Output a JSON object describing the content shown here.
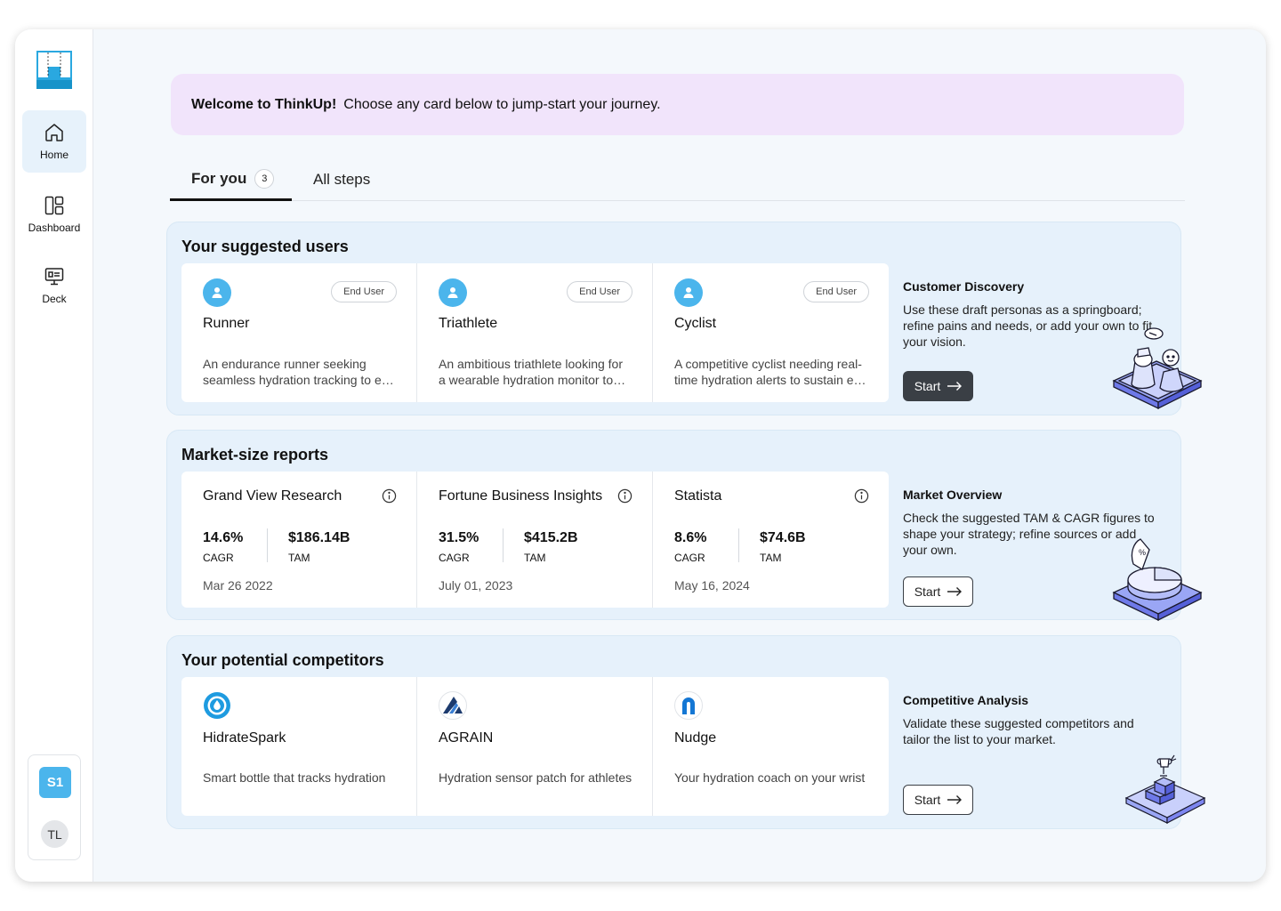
{
  "sidebar": {
    "nav": [
      {
        "label": "Home",
        "icon": "home-icon",
        "active": true
      },
      {
        "label": "Dashboard",
        "icon": "dashboard-icon"
      },
      {
        "label": "Deck",
        "icon": "deck-icon"
      }
    ],
    "workspace_badge": "S1",
    "user_initials": "TL"
  },
  "banner": {
    "bold": "Welcome to ThinkUp!",
    "text": "Choose any card below to jump-start your journey."
  },
  "tabs": [
    {
      "label": "For you",
      "count": "3",
      "active": true
    },
    {
      "label": "All steps"
    }
  ],
  "users_section": {
    "title": "Your suggested users",
    "cards": [
      {
        "badge": "End User",
        "name": "Runner",
        "desc1": "An endurance runner seeking",
        "desc2": "seamless hydration tracking to e…"
      },
      {
        "badge": "End User",
        "name": "Triathlete",
        "desc1": "An ambitious triathlete looking for",
        "desc2": "a wearable hydration monitor to…"
      },
      {
        "badge": "End User",
        "name": "Cyclist",
        "desc1": "A competitive cyclist needing real-",
        "desc2": "time hydration alerts to sustain e…"
      }
    ],
    "panel": {
      "title": "Customer Discovery",
      "text": "Use these draft personas as a springboard; refine pains and needs, or add your own to fit your vision.",
      "button": "Start"
    }
  },
  "market_section": {
    "title": "Market-size reports",
    "cards": [
      {
        "name": "Grand View Research",
        "cagr": "14.6%",
        "cagr_label": "CAGR",
        "tam": "$186.14B",
        "tam_label": "TAM",
        "date": "Mar 26 2022"
      },
      {
        "name": "Fortune Business Insights",
        "cagr": "31.5%",
        "cagr_label": "CAGR",
        "tam": "$415.2B",
        "tam_label": "TAM",
        "date": "July 01, 2023"
      },
      {
        "name": "Statista",
        "cagr": "8.6%",
        "cagr_label": "CAGR",
        "tam": "$74.6B",
        "tam_label": "TAM",
        "date": "May 16, 2024"
      }
    ],
    "panel": {
      "title": "Market Overview",
      "text": "Check the suggested TAM & CAGR figures to shape your strategy; refine sources or add your own.",
      "button": "Start"
    }
  },
  "competitors_section": {
    "title": "Your potential competitors",
    "cards": [
      {
        "name": "HidrateSpark",
        "desc": "Smart bottle that tracks hydration",
        "logo": "hidratespark-logo"
      },
      {
        "name": "AGRAIN",
        "desc": "Hydration sensor patch for athletes",
        "logo": "agrain-logo"
      },
      {
        "name": "Nudge",
        "desc": "Your hydration coach on your wrist",
        "logo": "nudge-logo"
      }
    ],
    "panel": {
      "title": "Competitive Analysis",
      "text": "Validate these suggested competitors and tailor the list to your market.",
      "button": "Start"
    }
  },
  "colors": {
    "accent_blue": "#4bb5ec",
    "banner_bg": "#f1e4fb",
    "section_bg": "#e6f1fb",
    "dark_button": "#3a3f45",
    "illustration_purple": "#7d86f0"
  }
}
